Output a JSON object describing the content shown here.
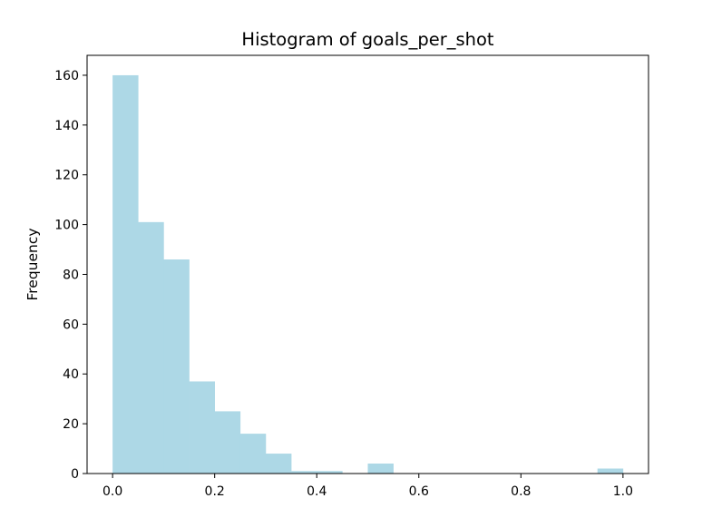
{
  "chart_data": {
    "type": "bar",
    "title": "Histogram of goals_per_shot",
    "xlabel": "",
    "ylabel": "Frequency",
    "bin_edges": [
      0.0,
      0.05,
      0.1,
      0.15,
      0.2,
      0.25,
      0.3,
      0.35,
      0.4,
      0.45,
      0.5,
      0.55,
      0.6,
      0.65,
      0.7,
      0.75,
      0.8,
      0.85,
      0.9,
      0.95,
      1.0
    ],
    "values": [
      160,
      101,
      86,
      37,
      25,
      16,
      8,
      1,
      1,
      0,
      4,
      0,
      0,
      0,
      0,
      0,
      0,
      0,
      0,
      2
    ],
    "xlim": [
      -0.05,
      1.05
    ],
    "ylim": [
      0,
      168
    ],
    "xticks": [
      0.0,
      0.2,
      0.4,
      0.6,
      0.8,
      1.0
    ],
    "xtick_labels": [
      "0.0",
      "0.2",
      "0.4",
      "0.6",
      "0.8",
      "1.0"
    ],
    "yticks": [
      0,
      20,
      40,
      60,
      80,
      100,
      120,
      140,
      160
    ],
    "ytick_labels": [
      "0",
      "20",
      "40",
      "60",
      "80",
      "100",
      "120",
      "140",
      "160"
    ],
    "grid": false,
    "legend": "none",
    "bar_color": "#add8e6"
  }
}
